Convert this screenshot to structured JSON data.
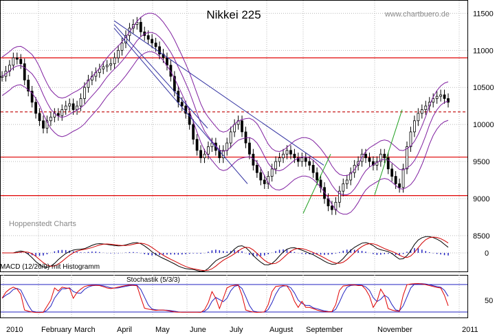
{
  "chart_data": [
    {
      "type": "candlestick",
      "title": "Nikkei 225",
      "watermark": "www.chartbuero.de",
      "source_label": "Hoppenstedt Charts",
      "y_ticks": [
        8500,
        9000,
        9500,
        10000,
        10500,
        11000,
        11500
      ],
      "ylim": [
        8480,
        11680
      ],
      "x_ticks": [
        "2010",
        "February",
        "March",
        "April",
        "May",
        "June",
        "July",
        "August",
        "September",
        "November",
        "2011"
      ],
      "horizontal_levels": [
        {
          "value": 10900,
          "style": "solid",
          "color": "#e00000"
        },
        {
          "value": 10170,
          "style": "dashed",
          "color": "#c00000"
        },
        {
          "value": 9560,
          "style": "solid",
          "color": "#e00000"
        },
        {
          "value": 9040,
          "style": "solid",
          "color": "#e00000"
        }
      ],
      "price": [
        10650,
        10720,
        10800,
        10900,
        10880,
        10820,
        10600,
        10450,
        10300,
        10150,
        10050,
        9950,
        10050,
        10100,
        10150,
        10120,
        10200,
        10250,
        10280,
        10200,
        10250,
        10350,
        10500,
        10600,
        10650,
        10700,
        10750,
        10780,
        10800,
        10820,
        10900,
        11000,
        11100,
        11200,
        11300,
        11350,
        11380,
        11250,
        11200,
        11150,
        11100,
        11050,
        10950,
        10900,
        10800,
        10650,
        10450,
        10300,
        10250,
        10150,
        10000,
        9800,
        9650,
        9550,
        9600,
        9700,
        9750,
        9650,
        9550,
        9650,
        9750,
        9900,
        10000,
        10050,
        9900,
        9750,
        9600,
        9450,
        9350,
        9250,
        9200,
        9300,
        9400,
        9500,
        9550,
        9600,
        9650,
        9600,
        9550,
        9500,
        9550,
        9500,
        9450,
        9350,
        9250,
        9150,
        9000,
        8900,
        8850,
        8950,
        9100,
        9200,
        9250,
        9350,
        9450,
        9500,
        9600,
        9550,
        9500,
        9450,
        9500,
        9600,
        9550,
        9400,
        9300,
        9200,
        9150,
        9400,
        9700,
        9900,
        10050,
        10150,
        10200,
        10250,
        10300,
        10350,
        10380,
        10400,
        10350,
        10300
      ],
      "trendlines": [
        {
          "from": [
            "April",
            11350
          ],
          "to": [
            "June",
            9950
          ],
          "color": "#3030a0"
        },
        {
          "from": [
            "April",
            11400
          ],
          "to": [
            "September",
            9450
          ],
          "color": "#3030a0"
        },
        {
          "from": [
            "April",
            11300
          ],
          "to": [
            "July",
            9200
          ],
          "color": "#3030a0"
        }
      ],
      "support_lines": [
        {
          "from": [
            "September",
            8800
          ],
          "to": [
            "September",
            9600
          ],
          "color": "#20a020"
        },
        {
          "from": [
            "November",
            9050
          ],
          "to": [
            "November",
            10200
          ],
          "color": "#20a020"
        }
      ]
    },
    {
      "type": "line",
      "label": "MACD (12/26/9) mit Histogramm",
      "y_ticks": [
        0
      ]
    },
    {
      "type": "line",
      "label": "Stochastik  (5/3/3)",
      "y_ticks": [
        50
      ]
    }
  ]
}
